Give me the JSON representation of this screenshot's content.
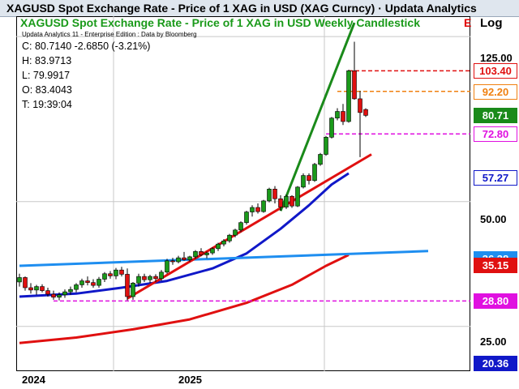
{
  "window": {
    "title": "XAGUSD Spot Exchange Rate - Price of 1 XAG in USD (XAG Curncy) · Updata Analytics"
  },
  "chart_header": {
    "subtitle": "XAGUSD Spot Exchange Rate - Price of 1 XAG in USD Weekly Candlestick",
    "edition": "Updata Analytics 11 - Enterprise Edition : Data by Bloomberg",
    "e_marker": "E",
    "scale_label": "Log"
  },
  "readout": {
    "close": "C: 80.7140  -2.6850 (-3.21%)",
    "high": "H: 83.9713",
    "low": "L: 79.9917",
    "open": "O: 83.4043",
    "time": "T: 19:39:04"
  },
  "chart_data": {
    "type": "candlestick",
    "title": "XAGUSD Spot Exchange Rate - Price of 1 XAG in USD Weekly Candlestick",
    "y_scale": "log",
    "ylim": [
      19.5,
      140
    ],
    "y_ticks": [
      "125.00",
      "50.00",
      "25.00"
    ],
    "x_labels": [
      "2024",
      "2025"
    ],
    "candles": [
      [
        32.0,
        33.5,
        31.2,
        32.8
      ],
      [
        32.8,
        33.0,
        30.5,
        31.0
      ],
      [
        31.0,
        31.8,
        30.0,
        30.6
      ],
      [
        30.6,
        31.5,
        29.8,
        31.2
      ],
      [
        31.2,
        31.6,
        30.2,
        30.5
      ],
      [
        30.5,
        31.0,
        29.5,
        29.9
      ],
      [
        29.9,
        30.5,
        29.0,
        29.4
      ],
      [
        29.4,
        30.2,
        28.9,
        29.8
      ],
      [
        29.8,
        30.7,
        29.3,
        30.3
      ],
      [
        30.3,
        31.2,
        29.8,
        30.7
      ],
      [
        30.7,
        31.8,
        30.2,
        31.5
      ],
      [
        31.5,
        32.6,
        31.0,
        32.2
      ],
      [
        32.2,
        33.0,
        31.4,
        31.9
      ],
      [
        31.9,
        32.5,
        31.0,
        31.4
      ],
      [
        31.4,
        32.9,
        31.0,
        32.5
      ],
      [
        32.5,
        33.8,
        32.0,
        33.5
      ],
      [
        33.5,
        34.0,
        32.6,
        33.1
      ],
      [
        33.1,
        34.6,
        32.5,
        34.2
      ],
      [
        34.2,
        34.8,
        33.0,
        33.4
      ],
      [
        33.4,
        34.5,
        28.9,
        29.5
      ],
      [
        29.5,
        32.0,
        29.0,
        31.8
      ],
      [
        31.8,
        33.5,
        31.2,
        33.0
      ],
      [
        33.0,
        33.5,
        32.0,
        32.4
      ],
      [
        32.4,
        33.3,
        31.8,
        33.0
      ],
      [
        33.0,
        33.4,
        32.0,
        32.6
      ],
      [
        32.6,
        34.2,
        32.2,
        33.8
      ],
      [
        33.8,
        36.4,
        33.5,
        36.0
      ],
      [
        36.0,
        36.6,
        35.2,
        35.8
      ],
      [
        35.8,
        37.0,
        35.5,
        36.6
      ],
      [
        36.6,
        37.8,
        36.0,
        36.2
      ],
      [
        36.2,
        37.0,
        35.8,
        36.8
      ],
      [
        36.8,
        38.2,
        36.4,
        37.9
      ],
      [
        37.9,
        38.6,
        36.9,
        37.2
      ],
      [
        37.2,
        37.9,
        36.5,
        37.6
      ],
      [
        37.6,
        38.8,
        37.2,
        38.5
      ],
      [
        38.5,
        39.8,
        38.0,
        39.5
      ],
      [
        39.5,
        40.6,
        39.0,
        40.2
      ],
      [
        40.2,
        41.8,
        39.8,
        41.5
      ],
      [
        41.5,
        43.0,
        41.0,
        42.7
      ],
      [
        42.7,
        44.8,
        42.2,
        44.5
      ],
      [
        44.5,
        47.5,
        44.0,
        47.2
      ],
      [
        47.2,
        49.0,
        46.0,
        48.4
      ],
      [
        48.4,
        49.5,
        46.8,
        47.3
      ],
      [
        47.3,
        50.5,
        47.0,
        50.2
      ],
      [
        50.2,
        54.0,
        49.8,
        53.6
      ],
      [
        53.6,
        54.5,
        49.5,
        50.8
      ],
      [
        50.8,
        51.8,
        47.5,
        48.5
      ],
      [
        48.5,
        52.0,
        48.0,
        51.5
      ],
      [
        51.5,
        51.8,
        48.3,
        48.8
      ],
      [
        48.8,
        54.5,
        48.5,
        54.2
      ],
      [
        54.2,
        58.5,
        53.8,
        57.8
      ],
      [
        57.8,
        58.5,
        55.0,
        56.2
      ],
      [
        56.2,
        62.0,
        55.8,
        61.5
      ],
      [
        61.5,
        65.5,
        61.0,
        65.0
      ],
      [
        65.0,
        72.0,
        64.5,
        71.5
      ],
      [
        71.5,
        80.0,
        71.0,
        79.5
      ],
      [
        79.5,
        84.0,
        78.5,
        82.5
      ],
      [
        82.5,
        86.0,
        76.5,
        78.0
      ],
      [
        78.0,
        104.0,
        77.5,
        103.4
      ],
      [
        103.4,
        121.5,
        88.0,
        88.5
      ],
      [
        88.5,
        92.5,
        64.0,
        82.0
      ],
      [
        83.4043,
        83.9713,
        79.9917,
        80.714
      ]
    ],
    "lines": [
      {
        "name": "blue-moving-average",
        "color": "#1018c8",
        "points": [
          [
            0,
            29.5
          ],
          [
            10,
            30.0
          ],
          [
            18,
            31.0
          ],
          [
            26,
            32.2
          ],
          [
            34,
            34.5
          ],
          [
            40,
            37.5
          ],
          [
            46,
            43.0
          ],
          [
            51,
            49.0
          ],
          [
            55,
            55.0
          ],
          [
            58,
            58.5
          ]
        ]
      },
      {
        "name": "red-moving-average",
        "color": "#e01010",
        "points": [
          [
            0,
            22.8
          ],
          [
            10,
            23.5
          ],
          [
            20,
            24.6
          ],
          [
            30,
            26.0
          ],
          [
            40,
            28.5
          ],
          [
            48,
            31.5
          ],
          [
            54,
            35.0
          ],
          [
            58,
            37.2
          ]
        ]
      },
      {
        "name": "blue-horizontal-trendline",
        "color": "#1e8ef0",
        "points": [
          [
            0,
            35.0
          ],
          [
            72,
            38.0
          ]
        ]
      },
      {
        "name": "red-rising-trendline",
        "color": "#e01010",
        "points": [
          [
            19,
            29.2
          ],
          [
            62,
            65.0
          ]
        ]
      },
      {
        "name": "green-steep-trendline",
        "color": "#1a8a1a",
        "points": [
          [
            46,
            47.5
          ],
          [
            59,
            135.0
          ]
        ]
      }
    ],
    "hlines": [
      {
        "name": "red-dashed-level",
        "color": "#e01010",
        "y": 103.4,
        "x_from": 58
      },
      {
        "name": "orange-dashed-level",
        "color": "#f08010",
        "y": 92.2,
        "x_from": 56
      },
      {
        "name": "magenta-dashed-level-upper",
        "color": "#e010e0",
        "y": 72.8,
        "x_from": 54
      },
      {
        "name": "magenta-dashed-level-lower",
        "color": "#e010e0",
        "y": 28.8,
        "x_from": 6
      }
    ]
  },
  "price_tags": [
    {
      "name": "tag-103-40",
      "label": "103.40",
      "value": 103.4,
      "bg": "#ffffff",
      "fg": "#e01010",
      "border": "#e01010"
    },
    {
      "name": "tag-92-20",
      "label": "92.20",
      "value": 92.2,
      "bg": "#ffffff",
      "fg": "#f08010",
      "border": "#f08010"
    },
    {
      "name": "tag-80-71",
      "label": "80.71",
      "value": 80.71,
      "bg": "#1a8a1a",
      "fg": "#ffffff",
      "border": "#1a8a1a"
    },
    {
      "name": "tag-72-80",
      "label": "72.80",
      "value": 72.8,
      "bg": "#ffffff",
      "fg": "#e010e0",
      "border": "#e010e0"
    },
    {
      "name": "tag-57-27",
      "label": "57.27",
      "value": 57.27,
      "bg": "#ffffff",
      "fg": "#1018c8",
      "border": "#1018c8"
    },
    {
      "name": "tag-36-38",
      "label": "36.38",
      "value": 36.38,
      "bg": "#1e8ef0",
      "fg": "#ffffff",
      "border": "#1e8ef0"
    },
    {
      "name": "tag-35-15",
      "label": "35.15",
      "value": 35.15,
      "bg": "#e01010",
      "fg": "#ffffff",
      "border": "#e01010"
    },
    {
      "name": "tag-28-80",
      "label": "28.80",
      "value": 28.8,
      "bg": "#e010e0",
      "fg": "#ffffff",
      "border": "#e010e0"
    },
    {
      "name": "tag-20-36",
      "label": "20.36",
      "value": 20.36,
      "bg": "#1018c8",
      "fg": "#ffffff",
      "border": "#1018c8"
    }
  ],
  "colors": {
    "up_candle": "#1a9a1a",
    "down_candle": "#e01010",
    "wick": "#000000",
    "grid": "#c8c8c8"
  }
}
